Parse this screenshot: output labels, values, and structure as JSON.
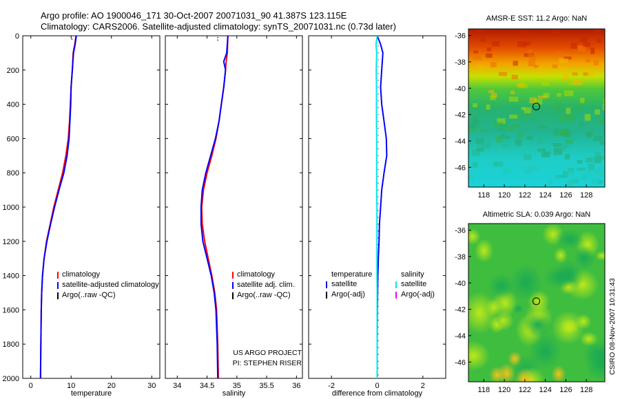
{
  "header": {
    "line1": "Argo profile: AO 1900046_171 30-Oct-2007 20071031_90 41.387S 123.115E",
    "line2": "Climatology: CARS2006. Satellite-adjusted climatology: synTS_20071031.nc (0.73d later)"
  },
  "chart_data": [
    {
      "type": "line",
      "panel": "temperature",
      "xlabel": "temperature",
      "ylabel": "",
      "xlim": [
        -2,
        32
      ],
      "ylim": [
        2000,
        0
      ],
      "xticks": [
        0,
        10,
        20,
        30
      ],
      "yticks": [
        0,
        200,
        400,
        600,
        800,
        1000,
        1200,
        1400,
        1600,
        1800,
        2000
      ],
      "series": [
        {
          "name": "climatology",
          "color": "#ff0000",
          "x": [
            11.2,
            10.9,
            10.5,
            10.3,
            10.0,
            9.8,
            9.6,
            9.3,
            8.7,
            7.9,
            6.8,
            5.7,
            4.8,
            3.9,
            3.3,
            2.9,
            2.7,
            2.6,
            2.5,
            2.4
          ],
          "y": [
            0,
            50,
            100,
            200,
            300,
            400,
            500,
            600,
            700,
            800,
            900,
            1000,
            1100,
            1200,
            1300,
            1400,
            1500,
            1600,
            1800,
            2000
          ]
        },
        {
          "name": "satellite-adjusted climatology",
          "color": "#0000ff",
          "x": [
            11.3,
            11.0,
            10.6,
            10.3,
            10.0,
            9.9,
            9.7,
            9.5,
            9.0,
            8.2,
            7.0,
            5.9,
            4.9,
            4.0,
            3.3,
            2.9,
            2.7,
            2.6,
            2.5,
            2.4
          ],
          "y": [
            0,
            50,
            100,
            200,
            300,
            400,
            500,
            600,
            700,
            800,
            900,
            1000,
            1100,
            1200,
            1300,
            1400,
            1500,
            1600,
            1800,
            2000
          ]
        }
      ],
      "legend": [
        "climatology",
        "satellite-adjusted climatology",
        "Argo(..raw -QC)"
      ]
    },
    {
      "type": "line",
      "panel": "salinity",
      "xlabel": "salinity",
      "xlim": [
        33.8,
        36.1
      ],
      "ylim": [
        2000,
        0
      ],
      "xticks": [
        34,
        34.5,
        35,
        35.5,
        36
      ],
      "series": [
        {
          "name": "climatology",
          "color": "#ff0000",
          "x": [
            34.85,
            34.84,
            34.82,
            34.81,
            34.78,
            34.74,
            34.7,
            34.65,
            34.58,
            34.5,
            34.44,
            34.41,
            34.42,
            34.46,
            34.52,
            34.58,
            34.63,
            34.66,
            34.68,
            34.69
          ],
          "y": [
            0,
            100,
            150,
            200,
            300,
            400,
            500,
            600,
            700,
            800,
            900,
            1000,
            1100,
            1200,
            1300,
            1400,
            1500,
            1600,
            1800,
            2000
          ]
        },
        {
          "name": "satellite adj. clim.",
          "color": "#0000ff",
          "x": [
            34.85,
            34.83,
            34.78,
            34.81,
            34.78,
            34.74,
            34.7,
            34.64,
            34.56,
            34.48,
            34.42,
            34.4,
            34.4,
            34.43,
            34.5,
            34.57,
            34.62,
            34.65,
            34.67,
            34.68
          ],
          "y": [
            0,
            100,
            150,
            200,
            300,
            400,
            500,
            600,
            700,
            800,
            900,
            1000,
            1100,
            1200,
            1300,
            1400,
            1500,
            1600,
            1800,
            2000
          ]
        }
      ],
      "legend": [
        "climatology",
        "satellite adj. clim.",
        "Argo(..raw -QC)"
      ]
    },
    {
      "type": "line",
      "panel": "difference",
      "xlabel": "difference from climatology",
      "xlim": [
        -3,
        3
      ],
      "ylim": [
        2000,
        0
      ],
      "xticks": [
        -2,
        0,
        2
      ],
      "series": [
        {
          "name": "temperature satellite",
          "color": "#0000ff",
          "x": [
            0.0,
            0.15,
            0.25,
            0.2,
            0.15,
            0.2,
            0.3,
            0.4,
            0.42,
            0.3,
            0.2,
            0.15,
            0.1,
            0.08,
            0.05,
            0.03,
            0.02,
            0.01,
            0.0,
            0.0
          ],
          "y": [
            0,
            50,
            100,
            200,
            300,
            400,
            500,
            600,
            700,
            800,
            900,
            1000,
            1100,
            1200,
            1300,
            1400,
            1500,
            1600,
            1800,
            2000
          ]
        },
        {
          "name": "salinity satellite",
          "color": "#00e5ee",
          "x": [
            0.0,
            -0.05,
            -0.02,
            -0.04,
            -0.03,
            -0.03,
            -0.03,
            -0.02,
            -0.02,
            -0.02,
            -0.02,
            -0.01,
            -0.01,
            -0.01,
            -0.01,
            -0.01,
            0.0,
            0.0,
            0.0,
            0.0
          ],
          "y": [
            0,
            50,
            100,
            200,
            300,
            400,
            500,
            600,
            700,
            800,
            900,
            1000,
            1100,
            1200,
            1300,
            1400,
            1500,
            1600,
            1800,
            2000
          ]
        }
      ],
      "legend_left_title": "temperature",
      "legend_left": [
        "satellite",
        "Argo(-adj)"
      ],
      "legend_right_title": "salinity",
      "legend_right": [
        "satellite",
        "Argo(-adj)"
      ]
    },
    {
      "type": "heatmap",
      "panel": "sst-map",
      "title": "AMSR-E SST: 11.2 Argo: NaN",
      "xlim": [
        116.5,
        129.8
      ],
      "ylim": [
        -47.5,
        -35.5
      ],
      "xticks": [
        118,
        120,
        122,
        124,
        126,
        128
      ],
      "yticks": [
        -36,
        -38,
        -40,
        -42,
        -44,
        -46
      ],
      "marker": {
        "lon": 123.115,
        "lat": -41.387
      }
    },
    {
      "type": "heatmap",
      "panel": "sla-map",
      "title": "Altimetric SLA: 0.039 Argo: NaN",
      "xlim": [
        116.5,
        129.8
      ],
      "ylim": [
        -47.5,
        -35.5
      ],
      "xticks": [
        118,
        120,
        122,
        124,
        126,
        128
      ],
      "yticks": [
        -36,
        -38,
        -40,
        -42,
        -44,
        -46
      ],
      "marker": {
        "lon": 123.115,
        "lat": -41.387
      }
    }
  ],
  "credit": {
    "line1": "US ARGO PROJECT",
    "line2": "PI: STEPHEN RISER"
  },
  "stamp": "CSIRO 08-Nov-2007 10:31:43",
  "colors": {
    "red": "#ff0000",
    "blue": "#0000ff",
    "cyan": "#00e5ee",
    "magenta": "#ee00ee",
    "black": "#000000"
  }
}
